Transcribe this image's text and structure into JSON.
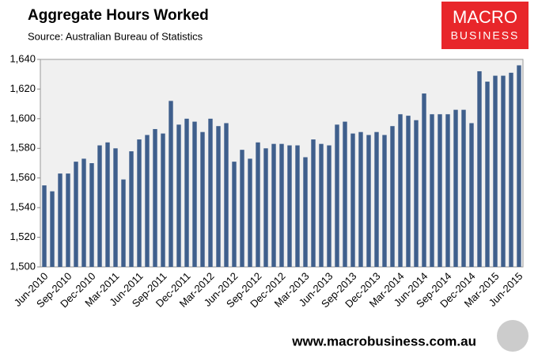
{
  "chart_data": {
    "type": "bar",
    "title": "Aggregate Hours Worked",
    "subtitle": "Source: Australian Bureau of Statistics",
    "categories": [
      "Jun-2010",
      null,
      null,
      "Sep-2010",
      null,
      null,
      "Dec-2010",
      null,
      null,
      "Mar-2011",
      null,
      null,
      "Jun-2011",
      null,
      null,
      "Sep-2011",
      null,
      null,
      "Dec-2011",
      null,
      null,
      "Mar-2012",
      null,
      null,
      "Jun-2012",
      null,
      null,
      "Sep-2012",
      null,
      null,
      "Dec-2012",
      null,
      null,
      "Mar-2013",
      null,
      null,
      "Jun-2013",
      null,
      null,
      "Sep-2013",
      null,
      null,
      "Dec-2013",
      null,
      null,
      "Mar-2014",
      null,
      null,
      "Jun-2014",
      null,
      null,
      "Sep-2014",
      null,
      null,
      "Dec-2014",
      null,
      null,
      "Mar-2015",
      null,
      null,
      "Jun-2015"
    ],
    "values": [
      1555,
      1551,
      1563,
      1563,
      1571,
      1573,
      1570,
      1582,
      1584,
      1580,
      1559,
      1578,
      1586,
      1589,
      1593,
      1590,
      1612,
      1596,
      1600,
      1598,
      1591,
      1600,
      1595,
      1597,
      1571,
      1579,
      1573,
      1584,
      1580,
      1583,
      1583,
      1582,
      1582,
      1574,
      1586,
      1583,
      1582,
      1596,
      1598,
      1590,
      1591,
      1589,
      1591,
      1589,
      1595,
      1603,
      1602,
      1599,
      1617,
      1603,
      1603,
      1603,
      1606,
      1606,
      1597,
      1632,
      1625,
      1629,
      1629,
      1631,
      1636
    ],
    "color": "#3f5f8c",
    "ylim": [
      1500,
      1640
    ],
    "yticks": [
      {
        "value": 1500,
        "label": "1,500"
      },
      {
        "value": 1520,
        "label": "1,520"
      },
      {
        "value": 1540,
        "label": "1,540"
      },
      {
        "value": 1560,
        "label": "1,560"
      },
      {
        "value": 1580,
        "label": "1,580"
      },
      {
        "value": 1600,
        "label": "1,600"
      },
      {
        "value": 1620,
        "label": "1,620"
      },
      {
        "value": 1640,
        "label": "1,640"
      }
    ],
    "grid": false
  },
  "branding": {
    "logo_lines": [
      "MACRO",
      "BUSINESS"
    ],
    "url": "www.macrobusiness.com.au"
  }
}
